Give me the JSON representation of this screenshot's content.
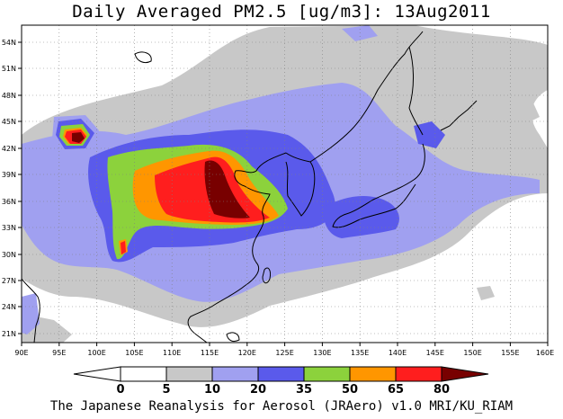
{
  "title": "Daily Averaged PM2.5 [ug/m3]: 13Aug2011",
  "footer": "The Japanese Reanalysis for Aerosol (JRAero) v1.0 MRI/KU_RIAM",
  "map": {
    "lon_range": [
      90,
      160
    ],
    "lat_range": [
      20,
      55
    ],
    "x_ticks": [
      "90E",
      "95E",
      "100E",
      "105E",
      "110E",
      "115E",
      "120E",
      "125E",
      "130E",
      "135E",
      "140E",
      "145E",
      "150E",
      "155E",
      "160E"
    ],
    "y_ticks": [
      "21N",
      "24N",
      "27N",
      "30N",
      "33N",
      "36N",
      "39N",
      "42N",
      "45N",
      "48N",
      "51N",
      "54N"
    ],
    "grid": "dotted"
  },
  "colorbar": {
    "levels": [
      "0",
      "5",
      "10",
      "20",
      "35",
      "50",
      "65",
      "80"
    ],
    "colors": [
      "#ffffff",
      "#c8c8c8",
      "#a0a0f0",
      "#5a5aeb",
      "#8cd23c",
      "#ff9600",
      "#ff1e1e",
      "#780000"
    ]
  }
}
